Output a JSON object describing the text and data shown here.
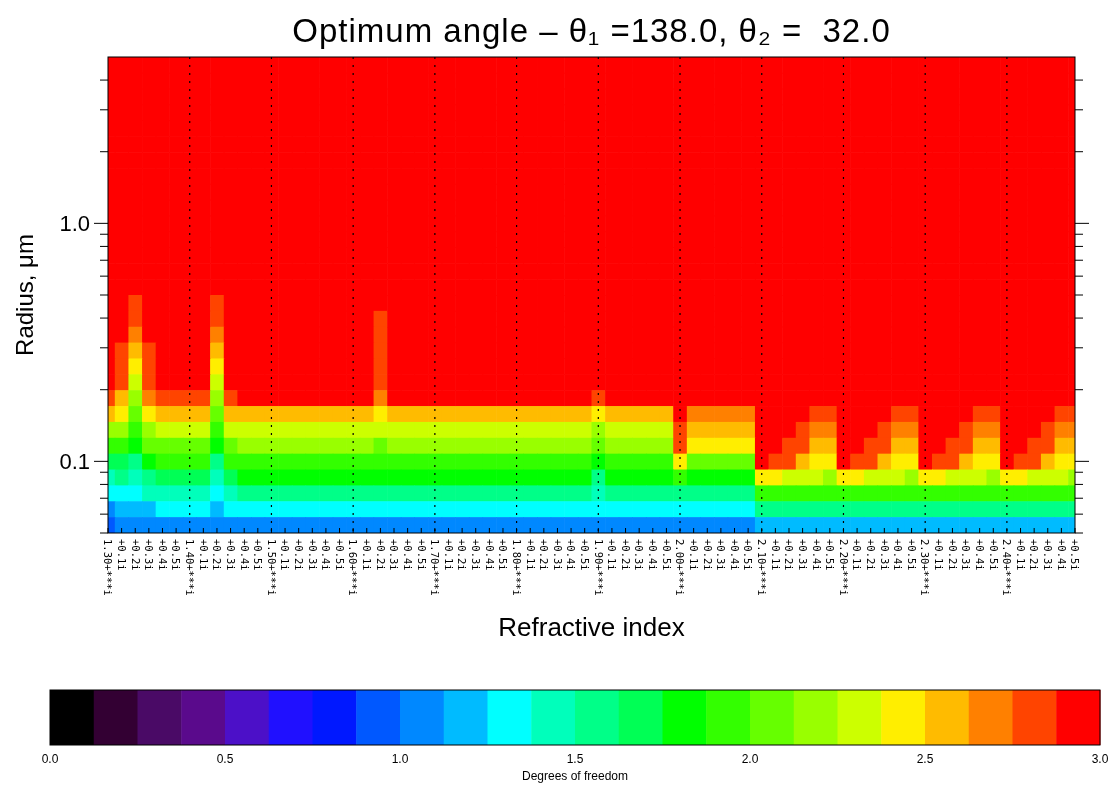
{
  "chart_data": {
    "type": "heatmap",
    "title": "Optimum angle – θ₁ =138.0, θ₂ =  32.0",
    "xlabel": "Refractive index",
    "ylabel": "Radius, μm",
    "clabel": "Degrees of freedom",
    "categories": [
      "1.30+***i",
      "+0.1i",
      "+0.2i",
      "+0.3i",
      "+0.4i",
      "+0.5i",
      "1.40+***i",
      "+0.1i",
      "+0.2i",
      "+0.3i",
      "+0.4i",
      "+0.5i",
      "1.50+***i",
      "+0.1i",
      "+0.2i",
      "+0.3i",
      "+0.4i",
      "+0.5i",
      "1.60+***i",
      "+0.1i",
      "+0.2i",
      "+0.3i",
      "+0.4i",
      "+0.5i",
      "1.70+***i",
      "+0.1i",
      "+0.2i",
      "+0.3i",
      "+0.4i",
      "+0.5i",
      "1.80+***i",
      "+0.1i",
      "+0.2i",
      "+0.3i",
      "+0.4i",
      "+0.5i",
      "1.90+***i",
      "+0.1i",
      "+0.2i",
      "+0.3i",
      "+0.4i",
      "+0.5i",
      "2.00+***i",
      "+0.1i",
      "+0.2i",
      "+0.3i",
      "+0.4i",
      "+0.5i",
      "2.10+***i",
      "+0.1i",
      "+0.2i",
      "+0.3i",
      "+0.4i",
      "+0.5i",
      "2.20+***i",
      "+0.1i",
      "+0.2i",
      "+0.3i",
      "+0.4i",
      "+0.5i",
      "2.30+***i",
      "+0.1i",
      "+0.2i",
      "+0.3i",
      "+0.4i",
      "+0.5i",
      "2.40+***i",
      "+0.1i",
      "+0.2i",
      "+0.3i",
      "+0.4i",
      "+0.5i"
    ],
    "ylim": [
      0.05,
      5
    ],
    "log": "y",
    "yticks": [
      {
        "value": 0.05,
        "label": null
      },
      {
        "value": 0.06,
        "label": null
      },
      {
        "value": 0.07,
        "label": null
      },
      {
        "value": 0.08,
        "label": null
      },
      {
        "value": 0.09,
        "label": null
      },
      {
        "value": 0.1,
        "label": "0.1"
      },
      {
        "value": 0.2,
        "label": null
      },
      {
        "value": 0.3,
        "label": null
      },
      {
        "value": 0.4,
        "label": null
      },
      {
        "value": 0.5,
        "label": null
      },
      {
        "value": 0.6,
        "label": null
      },
      {
        "value": 0.7,
        "label": null
      },
      {
        "value": 0.8,
        "label": null
      },
      {
        "value": 0.9,
        "label": null
      },
      {
        "value": 1,
        "label": "1.0"
      },
      {
        "value": 2,
        "label": null
      },
      {
        "value": 3,
        "label": null
      },
      {
        "value": 4,
        "label": null
      }
    ],
    "clim": [
      0,
      3
    ],
    "cticks": [
      {
        "value": 0,
        "label": "0.0"
      },
      {
        "value": 0.5,
        "label": "0.5"
      },
      {
        "value": 1,
        "label": "1.0"
      },
      {
        "value": 1.5,
        "label": "1.5"
      },
      {
        "value": 2,
        "label": "2.0"
      },
      {
        "value": 2.5,
        "label": "2.5"
      },
      {
        "value": 3,
        "label": "3.0"
      }
    ],
    "colors": [
      "#000000",
      "#330033",
      "#4a0a66",
      "#5a0a8c",
      "#4c10c8",
      "#2010ff",
      "#0018ff",
      "#0058ff",
      "#0088ff",
      "#00bbff",
      "#00ffff",
      "#00ffbb",
      "#00ff88",
      "#00ff55",
      "#00ff00",
      "#33ff00",
      "#66ff00",
      "#99ff00",
      "#ccff00",
      "#ffee00",
      "#ffbb00",
      "#ff8000",
      "#ff4400",
      "#ff0000"
    ],
    "ref_lines": [
      {
        "axis": "x",
        "value": "1.40+***i",
        "line_style": "dotted"
      },
      {
        "axis": "x",
        "value": "1.50+***i",
        "line_style": "dotted"
      },
      {
        "axis": "x",
        "value": "1.60+***i",
        "line_style": "dotted"
      },
      {
        "axis": "x",
        "value": "1.70+***i",
        "line_style": "dotted"
      },
      {
        "axis": "x",
        "value": "1.80+***i",
        "line_style": "dotted"
      },
      {
        "axis": "x",
        "value": "1.90+***i",
        "line_style": "dotted"
      },
      {
        "axis": "x",
        "value": "2.00+***i",
        "line_style": "dotted"
      },
      {
        "axis": "x",
        "value": "2.10+***i",
        "line_style": "dotted"
      },
      {
        "axis": "x",
        "value": "2.20+***i",
        "line_style": "dotted"
      },
      {
        "axis": "x",
        "value": "2.30+***i",
        "line_style": "dotted"
      },
      {
        "axis": "x",
        "value": "2.40+***i",
        "line_style": "dotted"
      }
    ],
    "cells": [
      [
        3,
        3,
        3,
        3,
        3,
        3,
        3,
        3,
        3,
        3,
        3,
        3,
        3,
        3,
        3,
        3,
        3,
        3,
        3,
        3,
        3,
        3,
        3,
        3,
        3,
        3,
        3,
        3,
        3,
        3,
        3,
        3,
        3,
        3,
        3,
        3,
        3,
        3,
        3,
        3,
        3,
        3,
        3,
        3,
        3,
        3,
        3,
        3,
        3,
        3,
        3,
        3,
        3,
        3,
        3,
        3,
        3,
        3,
        3,
        3,
        3,
        3,
        3,
        3,
        3,
        3,
        3,
        3,
        3,
        3,
        3,
        3
      ],
      [
        3,
        3,
        3,
        3,
        3,
        3,
        3,
        3,
        3,
        3,
        3,
        3,
        3,
        3,
        3,
        3,
        3,
        3,
        3,
        3,
        3,
        3,
        3,
        3,
        3,
        3,
        3,
        3,
        3,
        3,
        3,
        3,
        3,
        3,
        3,
        3,
        3,
        3,
        3,
        3,
        3,
        3,
        3,
        3,
        3,
        3,
        3,
        3,
        3,
        3,
        3,
        3,
        3,
        3,
        3,
        3,
        3,
        3,
        3,
        3,
        3,
        3,
        3,
        3,
        3,
        3,
        3,
        3,
        3,
        3,
        3,
        3
      ],
      [
        3,
        3,
        3,
        3,
        3,
        3,
        3,
        3,
        3,
        3,
        3,
        3,
        3,
        3,
        3,
        3,
        3,
        3,
        3,
        3,
        3,
        3,
        3,
        3,
        3,
        3,
        3,
        3,
        3,
        3,
        3,
        3,
        3,
        3,
        3,
        3,
        3,
        3,
        3,
        3,
        3,
        3,
        3,
        3,
        3,
        3,
        3,
        3,
        3,
        3,
        3,
        3,
        3,
        3,
        3,
        3,
        3,
        3,
        3,
        3,
        3,
        3,
        3,
        3,
        3,
        3,
        3,
        3,
        3,
        3,
        3,
        3
      ],
      [
        3,
        3,
        3,
        3,
        3,
        3,
        3,
        3,
        3,
        3,
        3,
        3,
        3,
        3,
        3,
        3,
        3,
        3,
        3,
        3,
        3,
        3,
        3,
        3,
        3,
        3,
        3,
        3,
        3,
        3,
        3,
        3,
        3,
        3,
        3,
        3,
        3,
        3,
        3,
        3,
        3,
        3,
        3,
        3,
        3,
        3,
        3,
        3,
        3,
        3,
        3,
        3,
        3,
        3,
        3,
        3,
        3,
        3,
        3,
        3,
        3,
        3,
        3,
        3,
        3,
        3,
        3,
        3,
        3,
        3,
        3,
        3
      ],
      [
        3,
        3,
        3,
        3,
        3,
        3,
        3,
        3,
        3,
        3,
        3,
        3,
        3,
        3,
        3,
        3,
        3,
        3,
        3,
        3,
        3,
        3,
        3,
        3,
        3,
        3,
        3,
        3,
        3,
        3,
        3,
        3,
        3,
        3,
        3,
        3,
        3,
        3,
        3,
        3,
        3,
        3,
        3,
        3,
        3,
        3,
        3,
        3,
        3,
        3,
        3,
        3,
        3,
        3,
        3,
        3,
        3,
        3,
        3,
        3,
        3,
        3,
        3,
        3,
        3,
        3,
        3,
        3,
        3,
        3,
        3,
        3
      ],
      [
        3,
        3,
        3,
        3,
        3,
        3,
        3,
        3,
        3,
        3,
        3,
        3,
        3,
        3,
        3,
        3,
        3,
        3,
        3,
        3,
        3,
        3,
        3,
        3,
        3,
        3,
        3,
        3,
        3,
        3,
        3,
        3,
        3,
        3,
        3,
        3,
        3,
        3,
        3,
        3,
        3,
        3,
        3,
        3,
        3,
        3,
        3,
        3,
        3,
        3,
        3,
        3,
        3,
        3,
        3,
        3,
        3,
        3,
        3,
        3,
        3,
        3,
        3,
        3,
        3,
        3,
        3,
        3,
        3,
        3,
        3,
        3
      ],
      [
        3,
        3,
        3,
        3,
        3,
        3,
        3,
        3,
        3,
        3,
        3,
        3,
        3,
        3,
        3,
        3,
        3,
        3,
        3,
        3,
        3,
        3,
        3,
        3,
        3,
        3,
        3,
        3,
        3,
        3,
        3,
        3,
        3,
        3,
        3,
        3,
        3,
        3,
        3,
        3,
        3,
        3,
        3,
        3,
        3,
        3,
        3,
        3,
        3,
        3,
        3,
        3,
        3,
        3,
        3,
        3,
        3,
        3,
        3,
        3,
        3,
        3,
        3,
        3,
        3,
        3,
        3,
        3,
        3,
        3,
        3,
        3
      ],
      [
        3,
        3,
        3,
        3,
        3,
        3,
        3,
        3,
        3,
        3,
        3,
        3,
        3,
        3,
        3,
        3,
        3,
        3,
        3,
        3,
        3,
        3,
        3,
        3,
        3,
        3,
        3,
        3,
        3,
        3,
        3,
        3,
        3,
        3,
        3,
        3,
        3,
        3,
        3,
        3,
        3,
        3,
        3,
        3,
        3,
        3,
        3,
        3,
        3,
        3,
        3,
        3,
        3,
        3,
        3,
        3,
        3,
        3,
        3,
        3,
        3,
        3,
        3,
        3,
        3,
        3,
        3,
        3,
        3,
        3,
        3,
        3
      ],
      [
        3,
        3,
        3,
        3,
        3,
        3,
        3,
        3,
        3,
        3,
        3,
        3,
        3,
        3,
        3,
        3,
        3,
        3,
        3,
        3,
        3,
        3,
        3,
        3,
        3,
        3,
        3,
        3,
        3,
        3,
        3,
        3,
        3,
        3,
        3,
        3,
        3,
        3,
        3,
        3,
        3,
        3,
        3,
        3,
        3,
        3,
        3,
        3,
        3,
        3,
        3,
        3,
        3,
        3,
        3,
        3,
        3,
        3,
        3,
        3,
        3,
        3,
        3,
        3,
        3,
        3,
        3,
        3,
        3,
        3,
        3,
        3
      ],
      [
        3,
        3,
        3,
        3,
        3,
        3,
        3,
        3,
        3,
        3,
        3,
        3,
        3,
        3,
        3,
        3,
        3,
        3,
        3,
        3,
        3,
        3,
        3,
        3,
        3,
        3,
        3,
        3,
        3,
        3,
        3,
        3,
        3,
        3,
        3,
        3,
        3,
        3,
        3,
        3,
        3,
        3,
        3,
        3,
        3,
        3,
        3,
        3,
        3,
        3,
        3,
        3,
        3,
        3,
        3,
        3,
        3,
        3,
        3,
        3,
        3,
        3,
        3,
        3,
        3,
        3,
        3,
        3,
        3,
        3,
        3,
        3
      ],
      [
        3,
        3,
        3,
        3,
        3,
        3,
        3,
        3,
        3,
        3,
        3,
        3,
        3,
        3,
        3,
        3,
        3,
        3,
        3,
        3,
        3,
        3,
        3,
        3,
        3,
        3,
        3,
        3,
        3,
        3,
        3,
        3,
        3,
        3,
        3,
        3,
        3,
        3,
        3,
        3,
        3,
        3,
        3,
        3,
        3,
        3,
        3,
        3,
        3,
        3,
        3,
        3,
        3,
        3,
        3,
        3,
        3,
        3,
        3,
        3,
        3,
        3,
        3,
        3,
        3,
        3,
        3,
        3,
        3,
        3,
        3,
        3
      ],
      [
        3,
        3,
        3,
        3,
        3,
        3,
        3,
        3,
        3,
        3,
        3,
        3,
        3,
        3,
        3,
        3,
        3,
        3,
        3,
        3,
        3,
        3,
        3,
        3,
        3,
        3,
        3,
        3,
        3,
        3,
        3,
        3,
        3,
        3,
        3,
        3,
        3,
        3,
        3,
        3,
        3,
        3,
        3,
        3,
        3,
        3,
        3,
        3,
        3,
        3,
        3,
        3,
        3,
        3,
        3,
        3,
        3,
        3,
        3,
        3,
        3,
        3,
        3,
        3,
        3,
        3,
        3,
        3,
        3,
        3,
        3,
        3
      ],
      [
        3,
        3,
        3,
        3,
        3,
        3,
        3,
        3,
        3,
        3,
        3,
        3,
        3,
        3,
        3,
        3,
        3,
        3,
        3,
        3,
        3,
        3,
        3,
        3,
        3,
        3,
        3,
        3,
        3,
        3,
        3,
        3,
        3,
        3,
        3,
        3,
        3,
        3,
        3,
        3,
        3,
        3,
        3,
        3,
        3,
        3,
        3,
        3,
        3,
        3,
        3,
        3,
        3,
        3,
        3,
        3,
        3,
        3,
        3,
        3,
        3,
        3,
        3,
        3,
        3,
        3,
        3,
        3,
        3,
        3,
        3,
        3
      ],
      [
        3,
        3,
        3,
        3,
        3,
        3,
        3,
        3,
        3,
        3,
        3,
        3,
        3,
        3,
        3,
        3,
        3,
        3,
        3,
        3,
        3,
        3,
        3,
        3,
        3,
        3,
        3,
        3,
        3,
        3,
        3,
        3,
        3,
        3,
        3,
        3,
        3,
        3,
        3,
        3,
        3,
        3,
        3,
        3,
        3,
        3,
        3,
        3,
        3,
        3,
        3,
        3,
        3,
        3,
        3,
        3,
        3,
        3,
        3,
        3,
        3,
        3,
        3,
        3,
        3,
        3,
        3,
        3,
        3,
        3,
        3,
        3
      ],
      [
        3,
        3,
        3,
        3,
        3,
        3,
        3,
        3,
        3,
        3,
        3,
        3,
        3,
        3,
        3,
        3,
        3,
        3,
        3,
        3,
        3,
        3,
        3,
        3,
        3,
        3,
        3,
        3,
        3,
        3,
        3,
        3,
        3,
        3,
        3,
        3,
        3,
        3,
        3,
        3,
        3,
        3,
        3,
        3,
        3,
        3,
        3,
        3,
        3,
        3,
        3,
        3,
        3,
        3,
        3,
        3,
        3,
        3,
        3,
        3,
        3,
        3,
        3,
        3,
        3,
        3,
        3,
        3,
        3,
        3,
        3,
        3
      ],
      [
        3,
        3,
        2.8,
        3,
        3,
        3,
        3,
        3,
        2.8,
        3,
        3,
        3,
        3,
        3,
        3,
        3,
        3,
        3,
        3,
        3,
        3,
        3,
        3,
        3,
        3,
        3,
        3,
        3,
        3,
        3,
        3,
        3,
        3,
        3,
        3,
        3,
        3,
        3,
        3,
        3,
        3,
        3,
        3,
        3,
        3,
        3,
        3,
        3,
        3,
        3,
        3,
        3,
        3,
        3,
        3,
        3,
        3,
        3,
        3,
        3,
        3,
        3,
        3,
        3,
        3,
        3,
        3,
        3,
        3,
        3,
        3,
        3
      ],
      [
        3,
        3,
        2.8,
        3,
        3,
        3,
        3,
        3,
        2.8,
        3,
        3,
        3,
        3,
        3,
        3,
        3,
        3,
        3,
        3,
        3,
        2.8,
        3,
        3,
        3,
        3,
        3,
        3,
        3,
        3,
        3,
        3,
        3,
        3,
        3,
        3,
        3,
        3,
        3,
        3,
        3,
        3,
        3,
        3,
        3,
        3,
        3,
        3,
        3,
        3,
        3,
        3,
        3,
        3,
        3,
        3,
        3,
        3,
        3,
        3,
        3,
        3,
        3,
        3,
        3,
        3,
        3,
        3,
        3,
        3,
        3,
        3,
        3
      ],
      [
        3,
        3,
        2.7,
        3,
        3,
        3,
        3,
        3,
        2.7,
        3,
        3,
        3,
        3,
        3,
        3,
        3,
        3,
        3,
        3,
        3,
        2.8,
        3,
        3,
        3,
        3,
        3,
        3,
        3,
        3,
        3,
        3,
        3,
        3,
        3,
        3,
        3,
        3,
        3,
        3,
        3,
        3,
        3,
        3,
        3,
        3,
        3,
        3,
        3,
        3,
        3,
        3,
        3,
        3,
        3,
        3,
        3,
        3,
        3,
        3,
        3,
        3,
        3,
        3,
        3,
        3,
        3,
        3,
        3,
        3,
        3,
        3,
        3
      ],
      [
        3,
        2.8,
        2.5,
        2.8,
        3,
        3,
        3,
        3,
        2.5,
        3,
        3,
        3,
        3,
        3,
        3,
        3,
        3,
        3,
        3,
        3,
        2.8,
        3,
        3,
        3,
        3,
        3,
        3,
        3,
        3,
        3,
        3,
        3,
        3,
        3,
        3,
        3,
        3,
        3,
        3,
        3,
        3,
        3,
        3,
        3,
        3,
        3,
        3,
        3,
        3,
        3,
        3,
        3,
        3,
        3,
        3,
        3,
        3,
        3,
        3,
        3,
        3,
        3,
        3,
        3,
        3,
        3,
        3,
        3,
        3,
        3,
        3,
        3
      ],
      [
        3,
        2.8,
        2.4,
        2.8,
        3,
        3,
        3,
        3,
        2.4,
        3,
        3,
        3,
        3,
        3,
        3,
        3,
        3,
        3,
        3,
        3,
        2.8,
        3,
        3,
        3,
        3,
        3,
        3,
        3,
        3,
        3,
        3,
        3,
        3,
        3,
        3,
        3,
        3,
        3,
        3,
        3,
        3,
        3,
        3,
        3,
        3,
        3,
        3,
        3,
        3,
        3,
        3,
        3,
        3,
        3,
        3,
        3,
        3,
        3,
        3,
        3,
        3,
        3,
        3,
        3,
        3,
        3,
        3,
        3,
        3,
        3,
        3,
        3
      ],
      [
        3,
        2.75,
        2.25,
        2.8,
        3,
        3,
        3,
        3,
        2.25,
        3,
        3,
        3,
        3,
        3,
        3,
        3,
        3,
        3,
        3,
        3,
        2.8,
        3,
        3,
        3,
        3,
        3,
        3,
        3,
        3,
        3,
        3,
        3,
        3,
        3,
        3,
        3,
        3,
        3,
        3,
        3,
        3,
        3,
        3,
        3,
        3,
        3,
        3,
        3,
        3,
        3,
        3,
        3,
        3,
        3,
        3,
        3,
        3,
        3,
        3,
        3,
        3,
        3,
        3,
        3,
        3,
        3,
        3,
        3,
        3,
        3,
        3,
        3
      ],
      [
        2.8,
        2.6,
        2.15,
        2.7,
        2.85,
        2.85,
        2.85,
        2.85,
        2.15,
        2.85,
        2.9,
        2.9,
        2.9,
        2.9,
        2.9,
        2.9,
        2.9,
        2.9,
        2.9,
        2.9,
        2.7,
        2.9,
        2.9,
        2.9,
        2.9,
        2.9,
        2.9,
        2.9,
        2.9,
        2.9,
        2.9,
        2.9,
        2.9,
        2.9,
        2.9,
        2.9,
        2.8,
        2.9,
        2.9,
        2.9,
        2.9,
        2.9,
        3,
        2.9,
        2.9,
        2.9,
        2.9,
        2.9,
        3,
        3,
        3,
        3,
        2.95,
        2.9,
        3,
        3,
        3,
        3,
        2.95,
        2.9,
        3,
        3,
        3,
        3,
        2.95,
        2.9,
        3,
        3,
        3,
        3,
        2.95,
        2.9
      ],
      [
        2.5,
        2.4,
        2.05,
        2.45,
        2.5,
        2.5,
        2.5,
        2.5,
        2.05,
        2.5,
        2.55,
        2.55,
        2.55,
        2.55,
        2.55,
        2.55,
        2.55,
        2.55,
        2.55,
        2.55,
        2.45,
        2.55,
        2.55,
        2.55,
        2.55,
        2.55,
        2.55,
        2.55,
        2.55,
        2.55,
        2.55,
        2.55,
        2.55,
        2.55,
        2.55,
        2.55,
        2.45,
        2.55,
        2.55,
        2.55,
        2.55,
        2.55,
        2.9,
        2.7,
        2.7,
        2.7,
        2.7,
        2.7,
        3,
        3,
        2.95,
        2.9,
        2.85,
        2.8,
        3,
        3,
        2.95,
        2.9,
        2.85,
        2.8,
        3,
        3,
        2.95,
        2.9,
        2.85,
        2.8,
        3,
        3,
        2.95,
        2.9,
        2.85,
        2.8
      ],
      [
        2.2,
        2.15,
        1.95,
        2.2,
        2.25,
        2.25,
        2.25,
        2.25,
        1.95,
        2.25,
        2.3,
        2.3,
        2.3,
        2.3,
        2.3,
        2.3,
        2.3,
        2.3,
        2.3,
        2.3,
        2.25,
        2.3,
        2.3,
        2.3,
        2.3,
        2.3,
        2.3,
        2.3,
        2.3,
        2.3,
        2.3,
        2.3,
        2.3,
        2.3,
        2.3,
        2.3,
        2.15,
        2.3,
        2.3,
        2.3,
        2.3,
        2.3,
        2.85,
        2.55,
        2.55,
        2.55,
        2.55,
        2.55,
        3,
        2.95,
        2.9,
        2.8,
        2.7,
        2.65,
        3,
        2.95,
        2.9,
        2.8,
        2.7,
        2.65,
        3,
        2.95,
        2.9,
        2.8,
        2.7,
        2.65,
        3,
        2.95,
        2.9,
        2.8,
        2.7,
        2.65
      ],
      [
        1.9,
        1.9,
        1.8,
        2,
        2.1,
        2.1,
        2.1,
        2.1,
        1.8,
        2.1,
        2.15,
        2.15,
        2.15,
        2.15,
        2.15,
        2.15,
        2.15,
        2.15,
        2.15,
        2.15,
        2.1,
        2.15,
        2.15,
        2.15,
        2.15,
        2.15,
        2.15,
        2.15,
        2.15,
        2.15,
        2.15,
        2.15,
        2.15,
        2.15,
        2.15,
        2.15,
        2,
        2.15,
        2.15,
        2.15,
        2.15,
        2.15,
        2.75,
        2.4,
        2.4,
        2.4,
        2.4,
        2.4,
        3,
        2.9,
        2.85,
        2.75,
        2.6,
        2.55,
        3,
        2.9,
        2.85,
        2.75,
        2.6,
        2.55,
        3,
        2.9,
        2.85,
        2.75,
        2.6,
        2.55,
        3,
        2.9,
        2.85,
        2.75,
        2.6,
        2.55
      ],
      [
        1.65,
        1.7,
        1.6,
        1.8,
        1.9,
        1.9,
        1.9,
        1.9,
        1.6,
        1.9,
        1.95,
        1.95,
        1.95,
        1.95,
        1.95,
        1.95,
        1.95,
        1.95,
        1.95,
        1.95,
        1.95,
        1.95,
        1.95,
        1.95,
        1.95,
        1.95,
        1.95,
        1.95,
        1.95,
        1.95,
        1.95,
        1.95,
        1.95,
        1.95,
        1.95,
        1.95,
        1.8,
        1.95,
        1.95,
        1.95,
        1.95,
        1.95,
        2.4,
        2.1,
        2.1,
        2.1,
        2.1,
        2.1,
        2.9,
        2.85,
        2.8,
        2.6,
        2.45,
        2.45,
        2.9,
        2.85,
        2.8,
        2.6,
        2.45,
        2.45,
        2.9,
        2.85,
        2.8,
        2.6,
        2.45,
        2.45,
        2.9,
        2.85,
        2.8,
        2.6,
        2.45,
        2.45
      ],
      [
        1.45,
        1.5,
        1.45,
        1.6,
        1.7,
        1.7,
        1.7,
        1.7,
        1.45,
        1.7,
        1.75,
        1.75,
        1.75,
        1.75,
        1.75,
        1.75,
        1.75,
        1.75,
        1.75,
        1.75,
        1.75,
        1.75,
        1.75,
        1.75,
        1.75,
        1.75,
        1.75,
        1.75,
        1.75,
        1.75,
        1.75,
        1.75,
        1.75,
        1.75,
        1.75,
        1.75,
        1.6,
        1.75,
        1.75,
        1.75,
        1.75,
        1.75,
        1.95,
        1.85,
        1.85,
        1.85,
        1.85,
        1.85,
        2.4,
        2.4,
        2.35,
        2.3,
        2.25,
        2.2,
        2.4,
        2.4,
        2.35,
        2.3,
        2.25,
        2.2,
        2.4,
        2.4,
        2.35,
        2.3,
        2.25,
        2.2,
        2.4,
        2.4,
        2.35,
        2.3,
        2.25,
        2.2
      ],
      [
        1.25,
        1.3,
        1.3,
        1.4,
        1.45,
        1.45,
        1.45,
        1.45,
        1.3,
        1.45,
        1.5,
        1.5,
        1.5,
        1.5,
        1.5,
        1.5,
        1.5,
        1.5,
        1.5,
        1.5,
        1.5,
        1.5,
        1.5,
        1.5,
        1.5,
        1.5,
        1.5,
        1.5,
        1.5,
        1.5,
        1.5,
        1.5,
        1.5,
        1.5,
        1.5,
        1.5,
        1.4,
        1.5,
        1.5,
        1.5,
        1.5,
        1.5,
        1.6,
        1.55,
        1.55,
        1.55,
        1.55,
        1.55,
        1.95,
        1.95,
        1.95,
        1.95,
        1.9,
        1.9,
        1.95,
        1.95,
        1.95,
        1.95,
        1.9,
        1.9,
        1.95,
        1.95,
        1.95,
        1.95,
        1.9,
        1.9,
        1.95,
        1.95,
        1.95,
        1.95,
        1.9,
        1.9
      ],
      [
        1.1,
        1.15,
        1.15,
        1.2,
        1.25,
        1.25,
        1.25,
        1.25,
        1.15,
        1.25,
        1.3,
        1.3,
        1.3,
        1.3,
        1.3,
        1.3,
        1.3,
        1.3,
        1.3,
        1.3,
        1.3,
        1.3,
        1.3,
        1.3,
        1.3,
        1.3,
        1.3,
        1.3,
        1.3,
        1.3,
        1.3,
        1.3,
        1.3,
        1.3,
        1.3,
        1.3,
        1.25,
        1.3,
        1.3,
        1.3,
        1.3,
        1.3,
        1.3,
        1.3,
        1.3,
        1.3,
        1.3,
        1.3,
        1.5,
        1.5,
        1.5,
        1.5,
        1.5,
        1.5,
        1.5,
        1.5,
        1.5,
        1.5,
        1.5,
        1.5,
        1.5,
        1.5,
        1.5,
        1.5,
        1.5,
        1.5,
        1.5,
        1.5,
        1.5,
        1.5,
        1.5,
        1.5
      ],
      [
        0.95,
        1,
        1,
        1.05,
        1.05,
        1.05,
        1.05,
        1.05,
        1,
        1.05,
        1.1,
        1.1,
        1.1,
        1.1,
        1.1,
        1.1,
        1.1,
        1.1,
        1.1,
        1.1,
        1.1,
        1.1,
        1.1,
        1.1,
        1.1,
        1.1,
        1.1,
        1.1,
        1.1,
        1.1,
        1.1,
        1.1,
        1.1,
        1.1,
        1.1,
        1.1,
        1.05,
        1.1,
        1.1,
        1.1,
        1.1,
        1.1,
        1.1,
        1.1,
        1.1,
        1.1,
        1.1,
        1.1,
        1.15,
        1.15,
        1.15,
        1.15,
        1.15,
        1.15,
        1.15,
        1.15,
        1.15,
        1.15,
        1.15,
        1.15,
        1.15,
        1.15,
        1.15,
        1.15,
        1.15,
        1.15,
        1.15,
        1.15,
        1.15,
        1.15,
        1.15,
        1.15
      ]
    ]
  }
}
